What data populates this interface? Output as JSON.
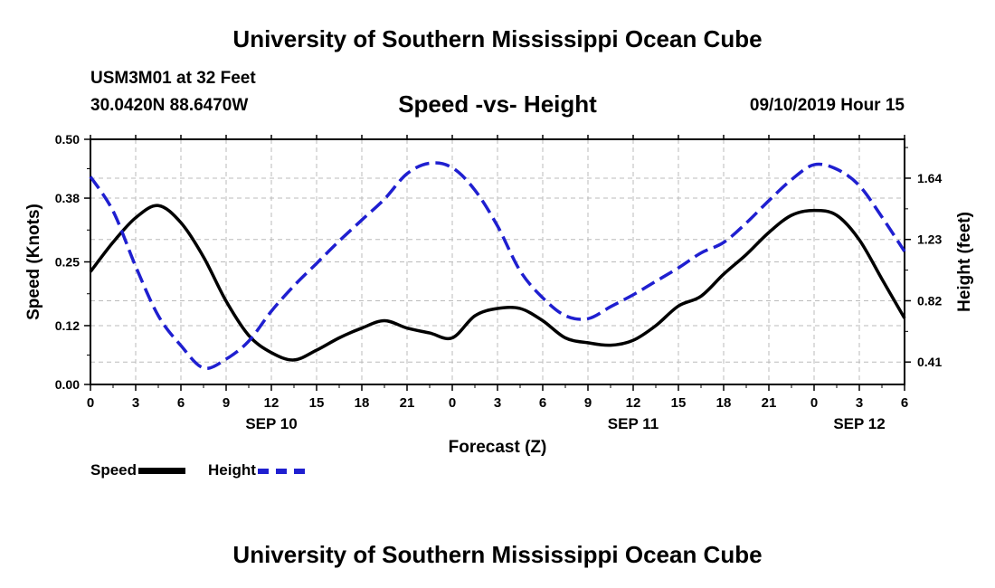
{
  "header": {
    "title_top": "University of Southern Mississippi Ocean Cube",
    "title_bottom": "University of Southern Mississippi Ocean Cube",
    "station": "USM3M01 at 32 Feet",
    "coordinates": "30.0420N 88.6470W",
    "datetime": "09/10/2019 Hour 15"
  },
  "legend": {
    "speed_label": "Speed",
    "height_label": "Height"
  },
  "colors": {
    "speed": "#000000",
    "height": "#1f1fd0",
    "grid": "#bbbbbb"
  },
  "chart_data": {
    "type": "line",
    "title": "Speed -vs- Height",
    "xlabel": "Forecast (Z)",
    "ylabel": "Speed (Knots)",
    "y2label": "Height (feet)",
    "x_range": [
      0,
      54
    ],
    "ylim": [
      0,
      0.5
    ],
    "y2lim": [
      0.26,
      1.9
    ],
    "x_ticks": [
      0,
      3,
      6,
      9,
      12,
      15,
      18,
      21,
      24,
      27,
      30,
      33,
      36,
      39,
      42,
      45,
      48,
      51,
      54
    ],
    "x_tick_labels": [
      "0",
      "3",
      "6",
      "9",
      "12",
      "15",
      "18",
      "21",
      "0",
      "3",
      "6",
      "9",
      "12",
      "15",
      "18",
      "21",
      "0",
      "3",
      "6"
    ],
    "date_labels": [
      {
        "x": 12,
        "label": "SEP 10"
      },
      {
        "x": 36,
        "label": "SEP 11"
      },
      {
        "x": 51,
        "label": "SEP 12"
      }
    ],
    "y_ticks": [
      0.0,
      0.12,
      0.25,
      0.38,
      0.5
    ],
    "y_tick_labels": [
      "0.00",
      "0.12",
      "0.25",
      "0.38",
      "0.50"
    ],
    "y2_ticks": [
      0.41,
      0.82,
      1.23,
      1.64
    ],
    "y2_tick_labels": [
      "0.41",
      "0.82",
      "1.23",
      "1.64"
    ],
    "grid": true,
    "series": [
      {
        "name": "Speed",
        "axis": "left",
        "x": [
          0,
          1.5,
          3,
          4.5,
          6,
          7.5,
          9,
          10.5,
          12,
          13.5,
          15,
          16.5,
          18,
          19.5,
          21,
          22.5,
          24,
          25.5,
          27,
          28.5,
          30,
          31.5,
          33,
          34.5,
          36,
          37.5,
          39,
          40.5,
          42,
          43.5,
          45,
          46.5,
          48,
          49.5,
          51,
          52.5,
          54
        ],
        "values": [
          0.23,
          0.29,
          0.34,
          0.365,
          0.33,
          0.26,
          0.17,
          0.1,
          0.065,
          0.05,
          0.07,
          0.095,
          0.115,
          0.13,
          0.115,
          0.105,
          0.095,
          0.14,
          0.155,
          0.155,
          0.13,
          0.095,
          0.085,
          0.08,
          0.09,
          0.12,
          0.16,
          0.18,
          0.225,
          0.265,
          0.31,
          0.345,
          0.355,
          0.345,
          0.295,
          0.215,
          0.135
        ]
      },
      {
        "name": "Height",
        "axis": "right",
        "x": [
          0,
          1.5,
          3,
          4.5,
          6,
          7.5,
          9,
          10.5,
          12,
          13.5,
          15,
          16.5,
          18,
          19.5,
          21,
          22.5,
          24,
          25.5,
          27,
          28.5,
          30,
          31.5,
          33,
          34.5,
          36,
          37.5,
          39,
          40.5,
          42,
          43.5,
          45,
          46.5,
          48,
          49.5,
          51,
          52.5,
          54
        ],
        "values": [
          1.65,
          1.42,
          1.05,
          0.72,
          0.52,
          0.37,
          0.43,
          0.55,
          0.75,
          0.92,
          1.07,
          1.22,
          1.36,
          1.5,
          1.67,
          1.74,
          1.71,
          1.56,
          1.32,
          1.02,
          0.84,
          0.72,
          0.7,
          0.78,
          0.86,
          0.95,
          1.04,
          1.14,
          1.21,
          1.34,
          1.49,
          1.63,
          1.73,
          1.7,
          1.59,
          1.38,
          1.15
        ]
      }
    ]
  }
}
